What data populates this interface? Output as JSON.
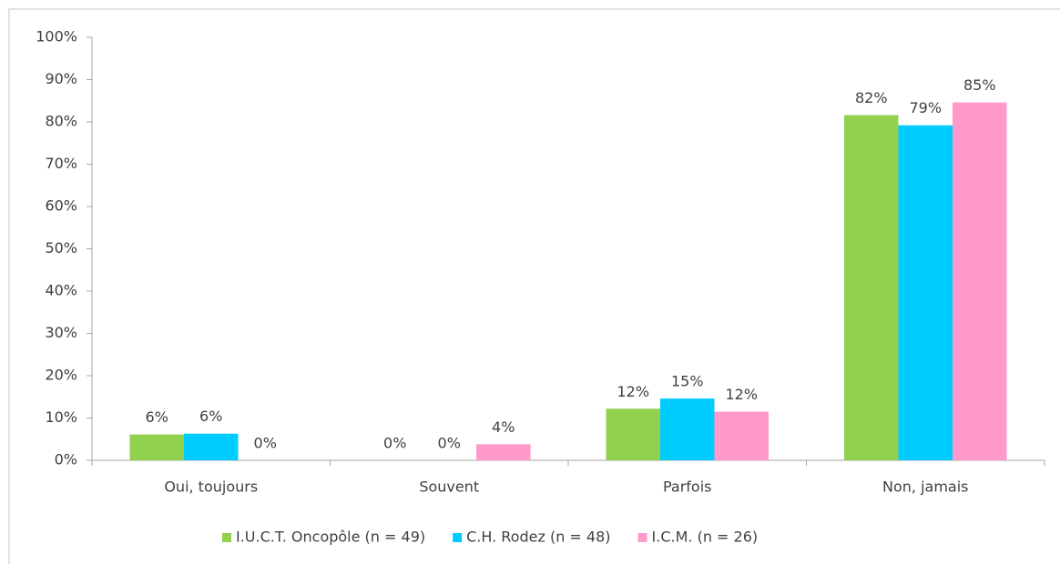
{
  "chart_data": {
    "type": "bar",
    "categories": [
      "Oui, toujours",
      "Souvent",
      "Parfois",
      "Non, jamais"
    ],
    "series": [
      {
        "name": "I.U.C.T. Oncopôle (n = 49)",
        "color": "#92d050",
        "values": [
          6.1,
          0,
          12.2,
          81.6
        ],
        "value_labels": [
          "6%",
          "0%",
          "12%",
          "82%"
        ]
      },
      {
        "name": "C.H. Rodez (n = 48)",
        "color": "#00ccff",
        "values": [
          6.3,
          0,
          14.6,
          79.2
        ],
        "value_labels": [
          "6%",
          "0%",
          "15%",
          "79%"
        ]
      },
      {
        "name": "I.C.M. (n = 26)",
        "color": "#ff99cc",
        "values": [
          0,
          3.8,
          11.5,
          84.6
        ],
        "value_labels": [
          "0%",
          "4%",
          "12%",
          "85%"
        ]
      }
    ],
    "ylim": [
      0,
      100
    ],
    "yticks": [
      {
        "value": 0,
        "label": "0%"
      },
      {
        "value": 10,
        "label": "10%"
      },
      {
        "value": 20,
        "label": "20%"
      },
      {
        "value": 30,
        "label": "30%"
      },
      {
        "value": 40,
        "label": "40%"
      },
      {
        "value": 50,
        "label": "50%"
      },
      {
        "value": 60,
        "label": "60%"
      },
      {
        "value": 70,
        "label": "70%"
      },
      {
        "value": 80,
        "label": "80%"
      },
      {
        "value": 90,
        "label": "90%"
      },
      {
        "value": 100,
        "label": "100%"
      }
    ],
    "legend": "bottom"
  }
}
